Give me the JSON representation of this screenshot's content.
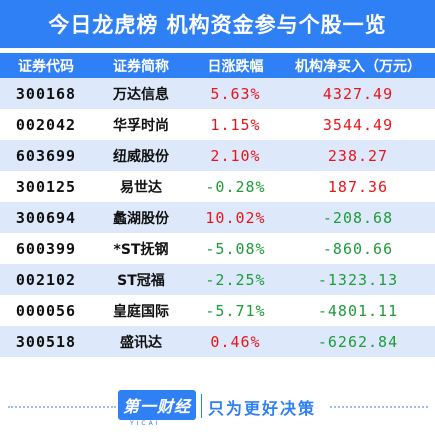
{
  "header": {
    "title": "今日龙虎榜  机构资金参与个股一览"
  },
  "table": {
    "columns": [
      "证券代码",
      "证券简称",
      "日涨跌幅",
      "机构净买入（万元）"
    ],
    "rows": [
      {
        "code": "300168",
        "name": "万达信息",
        "pct": "5.63%",
        "net": "4327.49",
        "pct_dir": "up",
        "net_dir": "up"
      },
      {
        "code": "002042",
        "name": "华孚时尚",
        "pct": "1.15%",
        "net": "3544.49",
        "pct_dir": "up",
        "net_dir": "up"
      },
      {
        "code": "603699",
        "name": "纽威股份",
        "pct": "2.10%",
        "net": "238.27",
        "pct_dir": "up",
        "net_dir": "up"
      },
      {
        "code": "300125",
        "name": "易世达",
        "pct": "-0.28%",
        "net": "187.36",
        "pct_dir": "down",
        "net_dir": "up"
      },
      {
        "code": "300694",
        "name": "蠡湖股份",
        "pct": "10.02%",
        "net": "-208.68",
        "pct_dir": "up",
        "net_dir": "down"
      },
      {
        "code": "600399",
        "name": "*ST抚钢",
        "pct": "-5.08%",
        "net": "-860.66",
        "pct_dir": "down",
        "net_dir": "down"
      },
      {
        "code": "002102",
        "name": "ST冠福",
        "pct": "-2.25%",
        "net": "-1323.13",
        "pct_dir": "down",
        "net_dir": "down"
      },
      {
        "code": "000056",
        "name": "皇庭国际",
        "pct": "-5.71%",
        "net": "-4801.11",
        "pct_dir": "down",
        "net_dir": "down"
      },
      {
        "code": "300518",
        "name": "盛讯达",
        "pct": "0.46%",
        "net": "-6262.84",
        "pct_dir": "up",
        "net_dir": "down"
      }
    ]
  },
  "footer": {
    "logo": "第一财经",
    "logo_sub": "YICAI",
    "slogan": "只为更好决策"
  },
  "colors": {
    "accent": "#2f7ff5",
    "row_tint": "#dde9fb",
    "up": "#e8151b",
    "down": "#1e9b3a"
  }
}
